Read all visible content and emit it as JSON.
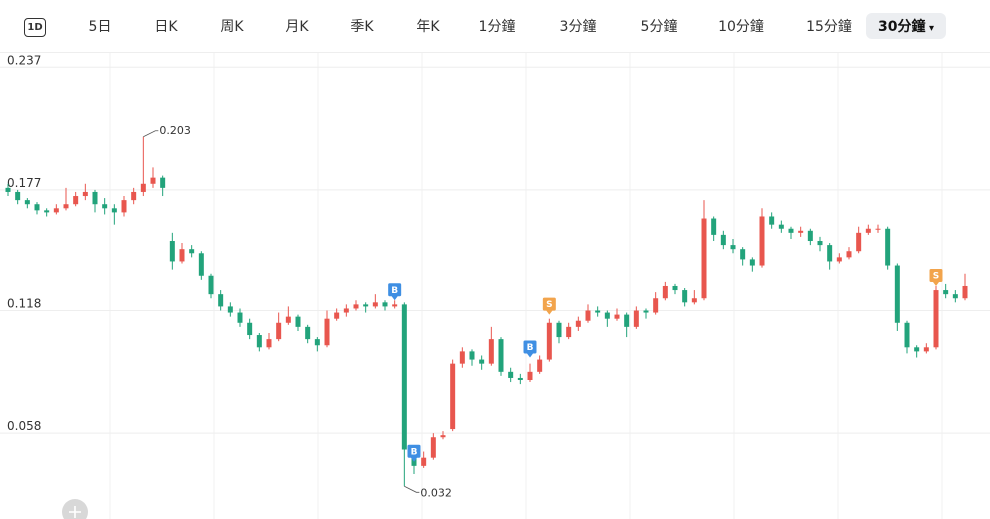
{
  "toolbar": {
    "icon": "1D",
    "tabs": [
      "5日",
      "日K",
      "周K",
      "月K",
      "季K",
      "年K",
      "1分鐘",
      "3分鐘",
      "5分鐘",
      "10分鐘",
      "15分鐘",
      "30分鐘"
    ],
    "selected": 11
  },
  "chart_data": {
    "type": "candlestick",
    "up_color": "#e8564e",
    "down_color": "#22a37b",
    "ylim": [
      0.016,
      0.243
    ],
    "yticks": [
      0.058,
      0.118,
      0.177,
      0.237
    ],
    "grid": true,
    "ohlc": [
      [
        0.178,
        0.18,
        0.174,
        0.176
      ],
      [
        0.176,
        0.177,
        0.17,
        0.172
      ],
      [
        0.172,
        0.173,
        0.168,
        0.17
      ],
      [
        0.17,
        0.171,
        0.165,
        0.167
      ],
      [
        0.167,
        0.168,
        0.164,
        0.166
      ],
      [
        0.166,
        0.17,
        0.165,
        0.168
      ],
      [
        0.168,
        0.178,
        0.167,
        0.17
      ],
      [
        0.17,
        0.176,
        0.169,
        0.174
      ],
      [
        0.174,
        0.18,
        0.172,
        0.176
      ],
      [
        0.176,
        0.177,
        0.166,
        0.17
      ],
      [
        0.17,
        0.173,
        0.165,
        0.168
      ],
      [
        0.168,
        0.17,
        0.16,
        0.166
      ],
      [
        0.166,
        0.174,
        0.164,
        0.172
      ],
      [
        0.172,
        0.178,
        0.17,
        0.176
      ],
      [
        0.176,
        0.203,
        0.174,
        0.18
      ],
      [
        0.18,
        0.188,
        0.178,
        0.183
      ],
      [
        0.183,
        0.184,
        0.174,
        0.178
      ],
      [
        0.152,
        0.156,
        0.138,
        0.142
      ],
      [
        0.142,
        0.151,
        0.141,
        0.148
      ],
      [
        0.148,
        0.15,
        0.144,
        0.146
      ],
      [
        0.146,
        0.147,
        0.133,
        0.135
      ],
      [
        0.135,
        0.136,
        0.124,
        0.126
      ],
      [
        0.126,
        0.128,
        0.118,
        0.12
      ],
      [
        0.12,
        0.122,
        0.115,
        0.117
      ],
      [
        0.117,
        0.119,
        0.11,
        0.112
      ],
      [
        0.112,
        0.114,
        0.104,
        0.106
      ],
      [
        0.106,
        0.107,
        0.098,
        0.1
      ],
      [
        0.1,
        0.107,
        0.099,
        0.104
      ],
      [
        0.104,
        0.117,
        0.103,
        0.112
      ],
      [
        0.112,
        0.12,
        0.111,
        0.115
      ],
      [
        0.115,
        0.116,
        0.108,
        0.11
      ],
      [
        0.11,
        0.111,
        0.102,
        0.104
      ],
      [
        0.104,
        0.105,
        0.098,
        0.101
      ],
      [
        0.101,
        0.118,
        0.1,
        0.114
      ],
      [
        0.114,
        0.119,
        0.113,
        0.117
      ],
      [
        0.117,
        0.121,
        0.115,
        0.119
      ],
      [
        0.119,
        0.123,
        0.118,
        0.121
      ],
      [
        0.121,
        0.122,
        0.117,
        0.12
      ],
      [
        0.12,
        0.126,
        0.119,
        0.122
      ],
      [
        0.122,
        0.123,
        0.118,
        0.12
      ],
      [
        0.12,
        0.123,
        0.119,
        0.121
      ],
      [
        0.121,
        0.122,
        0.032,
        0.05
      ],
      [
        0.05,
        0.052,
        0.038,
        0.042
      ],
      [
        0.042,
        0.049,
        0.041,
        0.046
      ],
      [
        0.046,
        0.058,
        0.045,
        0.056
      ],
      [
        0.056,
        0.059,
        0.055,
        0.057
      ],
      [
        0.06,
        0.094,
        0.059,
        0.092
      ],
      [
        0.092,
        0.1,
        0.09,
        0.098
      ],
      [
        0.098,
        0.099,
        0.091,
        0.094
      ],
      [
        0.094,
        0.096,
        0.089,
        0.092
      ],
      [
        0.092,
        0.11,
        0.091,
        0.104
      ],
      [
        0.104,
        0.105,
        0.086,
        0.088
      ],
      [
        0.088,
        0.09,
        0.083,
        0.085
      ],
      [
        0.085,
        0.087,
        0.082,
        0.084
      ],
      [
        0.084,
        0.092,
        0.083,
        0.088
      ],
      [
        0.088,
        0.096,
        0.087,
        0.094
      ],
      [
        0.094,
        0.114,
        0.093,
        0.112
      ],
      [
        0.112,
        0.113,
        0.102,
        0.105
      ],
      [
        0.105,
        0.112,
        0.104,
        0.11
      ],
      [
        0.11,
        0.115,
        0.108,
        0.113
      ],
      [
        0.113,
        0.121,
        0.112,
        0.118
      ],
      [
        0.118,
        0.12,
        0.115,
        0.117
      ],
      [
        0.117,
        0.118,
        0.11,
        0.114
      ],
      [
        0.114,
        0.119,
        0.113,
        0.116
      ],
      [
        0.116,
        0.117,
        0.105,
        0.11
      ],
      [
        0.11,
        0.12,
        0.109,
        0.118
      ],
      [
        0.118,
        0.119,
        0.114,
        0.117
      ],
      [
        0.117,
        0.127,
        0.116,
        0.124
      ],
      [
        0.124,
        0.132,
        0.123,
        0.13
      ],
      [
        0.13,
        0.131,
        0.126,
        0.128
      ],
      [
        0.128,
        0.129,
        0.12,
        0.122
      ],
      [
        0.122,
        0.128,
        0.121,
        0.124
      ],
      [
        0.124,
        0.172,
        0.123,
        0.163
      ],
      [
        0.163,
        0.164,
        0.152,
        0.155
      ],
      [
        0.155,
        0.157,
        0.148,
        0.15
      ],
      [
        0.15,
        0.153,
        0.146,
        0.148
      ],
      [
        0.148,
        0.149,
        0.14,
        0.143
      ],
      [
        0.143,
        0.144,
        0.137,
        0.14
      ],
      [
        0.14,
        0.168,
        0.139,
        0.164
      ],
      [
        0.164,
        0.166,
        0.158,
        0.16
      ],
      [
        0.16,
        0.162,
        0.156,
        0.158
      ],
      [
        0.158,
        0.159,
        0.153,
        0.156
      ],
      [
        0.156,
        0.159,
        0.154,
        0.157
      ],
      [
        0.157,
        0.158,
        0.15,
        0.152
      ],
      [
        0.152,
        0.154,
        0.147,
        0.15
      ],
      [
        0.15,
        0.151,
        0.138,
        0.142
      ],
      [
        0.142,
        0.146,
        0.141,
        0.144
      ],
      [
        0.144,
        0.149,
        0.143,
        0.147
      ],
      [
        0.147,
        0.159,
        0.146,
        0.156
      ],
      [
        0.156,
        0.16,
        0.155,
        0.158
      ],
      [
        0.158,
        0.16,
        0.156,
        0.158
      ],
      [
        0.158,
        0.159,
        0.138,
        0.14
      ],
      [
        0.14,
        0.141,
        0.108,
        0.112
      ],
      [
        0.112,
        0.113,
        0.097,
        0.1
      ],
      [
        0.1,
        0.101,
        0.095,
        0.098
      ],
      [
        0.098,
        0.102,
        0.097,
        0.1
      ],
      [
        0.1,
        0.13,
        0.099,
        0.128
      ],
      [
        0.128,
        0.131,
        0.124,
        0.126
      ],
      [
        0.126,
        0.128,
        0.122,
        0.124
      ],
      [
        0.124,
        0.136,
        0.123,
        0.13
      ]
    ],
    "trades": [
      {
        "label": "B",
        "index": 40,
        "price": 0.123,
        "color": "#3f8fe3"
      },
      {
        "label": "B",
        "index": 42,
        "price": 0.044,
        "color": "#3f8fe3"
      },
      {
        "label": "B",
        "index": 54,
        "price": 0.095,
        "color": "#3f8fe3"
      },
      {
        "label": "S",
        "index": 56,
        "price": 0.116,
        "color": "#f2a44c"
      },
      {
        "label": "S",
        "index": 96,
        "price": 0.13,
        "color": "#f2a44c"
      }
    ]
  }
}
